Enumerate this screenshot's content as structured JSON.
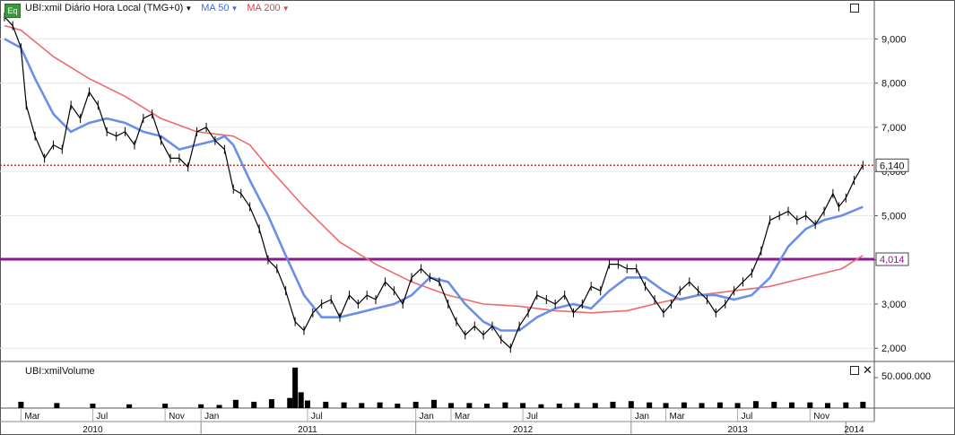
{
  "header": {
    "icon_label": "Eq",
    "symbol_text": "UBI:xmil Diário Hora Local (TMG+0)",
    "ma50_label": "MA 50",
    "ma200_label": "MA 200"
  },
  "volume_panel": {
    "title": "UBI:xmilVolume",
    "axis_label": "50.000.000"
  },
  "colors": {
    "price": "#000000",
    "ma50": "#6b8fe8",
    "ma200": "#ee6b6b",
    "support": "#8b1a8b",
    "last_price": "#c0392b",
    "volume": "#000000"
  },
  "chart_data": {
    "type": "line",
    "title": "UBI:xmil Diário Hora Local (TMG+0)",
    "ylim": [
      1.7,
      9.8
    ],
    "y_ticks": [
      "9,000",
      "8,000",
      "7,000",
      "6,000",
      "5,000",
      "4,000",
      "3,000",
      "2,000"
    ],
    "y_tick_values": [
      9,
      8,
      7,
      6,
      5,
      4,
      3,
      2
    ],
    "x_range": [
      "2010-02-01",
      "2014-01-31"
    ],
    "month_labels": [
      {
        "date": "2010-03-01",
        "label": "Mar"
      },
      {
        "date": "2010-07-01",
        "label": "Jul"
      },
      {
        "date": "2010-11-01",
        "label": "Nov"
      },
      {
        "date": "2011-01-01",
        "label": "Jan"
      },
      {
        "date": "2011-07-01",
        "label": "Jul"
      },
      {
        "date": "2012-01-01",
        "label": "Jan"
      },
      {
        "date": "2012-03-01",
        "label": "Mar"
      },
      {
        "date": "2012-07-01",
        "label": "Jul"
      },
      {
        "date": "2013-01-01",
        "label": "Jan"
      },
      {
        "date": "2013-03-01",
        "label": "Mar"
      },
      {
        "date": "2013-07-01",
        "label": "Jul"
      },
      {
        "date": "2013-11-01",
        "label": "Nov"
      }
    ],
    "year_labels": [
      {
        "date": "2010-07-01",
        "label": "2010"
      },
      {
        "date": "2011-07-01",
        "label": "2011"
      },
      {
        "date": "2012-07-01",
        "label": "2012"
      },
      {
        "date": "2013-07-01",
        "label": "2013"
      },
      {
        "date": "2014-01-15",
        "label": "2014"
      }
    ],
    "year_boundaries": [
      "2011-01-01",
      "2012-01-01",
      "2013-01-01",
      "2014-01-01"
    ],
    "last_price": {
      "value": 6.14,
      "label": "6,140"
    },
    "support_line": {
      "value": 4.014,
      "label": "4,014"
    },
    "series": [
      {
        "name": "UBI:xmil",
        "style": "candles",
        "points": [
          [
            "2010-02-01",
            9.5
          ],
          [
            "2010-02-15",
            9.3
          ],
          [
            "2010-03-01",
            8.8
          ],
          [
            "2010-03-10",
            7.5
          ],
          [
            "2010-03-25",
            6.8
          ],
          [
            "2010-04-10",
            6.3
          ],
          [
            "2010-04-25",
            6.6
          ],
          [
            "2010-05-10",
            6.5
          ],
          [
            "2010-05-25",
            7.5
          ],
          [
            "2010-06-10",
            7.2
          ],
          [
            "2010-06-25",
            7.8
          ],
          [
            "2010-07-10",
            7.5
          ],
          [
            "2010-07-25",
            6.9
          ],
          [
            "2010-08-10",
            6.8
          ],
          [
            "2010-08-25",
            6.9
          ],
          [
            "2010-09-10",
            6.6
          ],
          [
            "2010-09-25",
            7.2
          ],
          [
            "2010-10-10",
            7.3
          ],
          [
            "2010-10-25",
            6.7
          ],
          [
            "2010-11-10",
            6.3
          ],
          [
            "2010-11-25",
            6.3
          ],
          [
            "2010-12-10",
            6.1
          ],
          [
            "2010-12-25",
            6.9
          ],
          [
            "2011-01-10",
            7.0
          ],
          [
            "2011-01-25",
            6.7
          ],
          [
            "2011-02-10",
            6.5
          ],
          [
            "2011-02-25",
            5.6
          ],
          [
            "2011-03-10",
            5.5
          ],
          [
            "2011-03-25",
            5.2
          ],
          [
            "2011-04-10",
            4.7
          ],
          [
            "2011-04-25",
            4.0
          ],
          [
            "2011-05-10",
            3.8
          ],
          [
            "2011-05-25",
            3.3
          ],
          [
            "2011-06-10",
            2.6
          ],
          [
            "2011-06-25",
            2.4
          ],
          [
            "2011-07-10",
            2.8
          ],
          [
            "2011-07-25",
            3.0
          ],
          [
            "2011-08-10",
            3.1
          ],
          [
            "2011-08-25",
            2.7
          ],
          [
            "2011-09-10",
            3.2
          ],
          [
            "2011-09-25",
            3.0
          ],
          [
            "2011-10-10",
            3.2
          ],
          [
            "2011-10-25",
            3.1
          ],
          [
            "2011-11-10",
            3.5
          ],
          [
            "2011-11-25",
            3.3
          ],
          [
            "2011-12-10",
            3.0
          ],
          [
            "2011-12-25",
            3.6
          ],
          [
            "2012-01-10",
            3.8
          ],
          [
            "2012-01-25",
            3.6
          ],
          [
            "2012-02-10",
            3.5
          ],
          [
            "2012-02-25",
            3.0
          ],
          [
            "2012-03-10",
            2.6
          ],
          [
            "2012-03-25",
            2.3
          ],
          [
            "2012-04-10",
            2.5
          ],
          [
            "2012-04-25",
            2.3
          ],
          [
            "2012-05-10",
            2.5
          ],
          [
            "2012-05-25",
            2.2
          ],
          [
            "2012-06-10",
            2.0
          ],
          [
            "2012-06-25",
            2.5
          ],
          [
            "2012-07-10",
            2.8
          ],
          [
            "2012-07-25",
            3.2
          ],
          [
            "2012-08-10",
            3.1
          ],
          [
            "2012-08-25",
            3.0
          ],
          [
            "2012-09-10",
            3.2
          ],
          [
            "2012-09-25",
            2.8
          ],
          [
            "2012-10-10",
            3.0
          ],
          [
            "2012-10-25",
            3.4
          ],
          [
            "2012-11-10",
            3.3
          ],
          [
            "2012-11-25",
            3.9
          ],
          [
            "2012-12-10",
            3.9
          ],
          [
            "2012-12-25",
            3.8
          ],
          [
            "2013-01-10",
            3.8
          ],
          [
            "2013-01-25",
            3.4
          ],
          [
            "2013-02-10",
            3.1
          ],
          [
            "2013-02-25",
            2.8
          ],
          [
            "2013-03-10",
            3.0
          ],
          [
            "2013-03-25",
            3.3
          ],
          [
            "2013-04-10",
            3.5
          ],
          [
            "2013-04-25",
            3.3
          ],
          [
            "2013-05-10",
            3.1
          ],
          [
            "2013-05-25",
            2.8
          ],
          [
            "2013-06-10",
            3.0
          ],
          [
            "2013-06-25",
            3.3
          ],
          [
            "2013-07-10",
            3.5
          ],
          [
            "2013-07-25",
            3.7
          ],
          [
            "2013-08-10",
            4.2
          ],
          [
            "2013-08-25",
            4.9
          ],
          [
            "2013-09-10",
            5.0
          ],
          [
            "2013-09-25",
            5.1
          ],
          [
            "2013-10-10",
            4.9
          ],
          [
            "2013-10-25",
            5.0
          ],
          [
            "2013-11-10",
            4.8
          ],
          [
            "2013-11-25",
            5.1
          ],
          [
            "2013-12-10",
            5.5
          ],
          [
            "2013-12-20",
            5.2
          ],
          [
            "2014-01-01",
            5.4
          ],
          [
            "2014-01-15",
            5.8
          ],
          [
            "2014-01-30",
            6.14
          ]
        ]
      },
      {
        "name": "MA 50",
        "style": "line",
        "points": [
          [
            "2010-02-01",
            9.0
          ],
          [
            "2010-03-01",
            8.8
          ],
          [
            "2010-03-25",
            8.1
          ],
          [
            "2010-04-25",
            7.3
          ],
          [
            "2010-05-25",
            6.9
          ],
          [
            "2010-06-25",
            7.1
          ],
          [
            "2010-07-25",
            7.2
          ],
          [
            "2010-08-25",
            7.1
          ],
          [
            "2010-09-25",
            6.9
          ],
          [
            "2010-10-25",
            6.8
          ],
          [
            "2010-11-25",
            6.5
          ],
          [
            "2010-12-25",
            6.6
          ],
          [
            "2011-01-25",
            6.7
          ],
          [
            "2011-02-10",
            6.8
          ],
          [
            "2011-02-25",
            6.6
          ],
          [
            "2011-03-25",
            5.8
          ],
          [
            "2011-04-25",
            5.0
          ],
          [
            "2011-05-25",
            4.1
          ],
          [
            "2011-06-25",
            3.2
          ],
          [
            "2011-07-25",
            2.7
          ],
          [
            "2011-08-25",
            2.7
          ],
          [
            "2011-09-25",
            2.8
          ],
          [
            "2011-10-25",
            2.9
          ],
          [
            "2011-11-25",
            3.0
          ],
          [
            "2011-12-25",
            3.2
          ],
          [
            "2012-01-25",
            3.6
          ],
          [
            "2012-02-25",
            3.5
          ],
          [
            "2012-03-25",
            3.0
          ],
          [
            "2012-04-25",
            2.6
          ],
          [
            "2012-05-25",
            2.4
          ],
          [
            "2012-06-25",
            2.4
          ],
          [
            "2012-07-25",
            2.7
          ],
          [
            "2012-08-25",
            2.9
          ],
          [
            "2012-09-25",
            3.0
          ],
          [
            "2012-10-25",
            2.9
          ],
          [
            "2012-11-25",
            3.3
          ],
          [
            "2012-12-25",
            3.6
          ],
          [
            "2013-01-25",
            3.6
          ],
          [
            "2013-02-25",
            3.3
          ],
          [
            "2013-03-25",
            3.1
          ],
          [
            "2013-04-25",
            3.2
          ],
          [
            "2013-05-25",
            3.2
          ],
          [
            "2013-06-25",
            3.1
          ],
          [
            "2013-07-25",
            3.2
          ],
          [
            "2013-08-25",
            3.6
          ],
          [
            "2013-09-25",
            4.3
          ],
          [
            "2013-10-25",
            4.7
          ],
          [
            "2013-11-25",
            4.9
          ],
          [
            "2013-12-25",
            5.0
          ],
          [
            "2014-01-30",
            5.2
          ]
        ]
      },
      {
        "name": "MA 200",
        "style": "line",
        "points": [
          [
            "2010-02-01",
            9.3
          ],
          [
            "2010-03-01",
            9.2
          ],
          [
            "2010-04-25",
            8.6
          ],
          [
            "2010-06-25",
            8.1
          ],
          [
            "2010-08-25",
            7.7
          ],
          [
            "2010-10-25",
            7.2
          ],
          [
            "2010-12-25",
            6.9
          ],
          [
            "2011-02-25",
            6.8
          ],
          [
            "2011-03-25",
            6.6
          ],
          [
            "2011-04-25",
            6.1
          ],
          [
            "2011-06-25",
            5.2
          ],
          [
            "2011-08-25",
            4.4
          ],
          [
            "2011-10-25",
            3.9
          ],
          [
            "2011-12-25",
            3.5
          ],
          [
            "2012-02-25",
            3.2
          ],
          [
            "2012-04-25",
            3.0
          ],
          [
            "2012-06-25",
            2.95
          ],
          [
            "2012-08-25",
            2.85
          ],
          [
            "2012-10-25",
            2.8
          ],
          [
            "2012-12-25",
            2.85
          ],
          [
            "2013-02-25",
            3.05
          ],
          [
            "2013-04-25",
            3.2
          ],
          [
            "2013-06-25",
            3.3
          ],
          [
            "2013-08-25",
            3.4
          ],
          [
            "2013-10-25",
            3.6
          ],
          [
            "2013-12-25",
            3.8
          ],
          [
            "2014-01-30",
            4.1
          ]
        ]
      }
    ],
    "volume_series": {
      "name": "UBI:xmilVolume",
      "points": [
        [
          "2010-03-01",
          1.0
        ],
        [
          "2010-05-01",
          0.8
        ],
        [
          "2010-07-01",
          0.7
        ],
        [
          "2010-09-01",
          0.6
        ],
        [
          "2010-11-01",
          0.7
        ],
        [
          "2011-01-01",
          0.6
        ],
        [
          "2011-02-01",
          0.5
        ],
        [
          "2011-03-01",
          1.3
        ],
        [
          "2011-04-01",
          1.0
        ],
        [
          "2011-05-01",
          1.4
        ],
        [
          "2011-06-01",
          1.6
        ],
        [
          "2011-06-10",
          6.4
        ],
        [
          "2011-06-20",
          2.5
        ],
        [
          "2011-07-01",
          1.2
        ],
        [
          "2011-08-01",
          1.0
        ],
        [
          "2011-09-01",
          0.9
        ],
        [
          "2011-10-01",
          0.8
        ],
        [
          "2011-11-01",
          0.9
        ],
        [
          "2011-12-01",
          0.7
        ],
        [
          "2012-01-01",
          1.0
        ],
        [
          "2012-02-01",
          1.3
        ],
        [
          "2012-03-01",
          0.8
        ],
        [
          "2012-04-01",
          0.8
        ],
        [
          "2012-05-01",
          0.7
        ],
        [
          "2012-06-01",
          0.9
        ],
        [
          "2012-07-01",
          0.8
        ],
        [
          "2012-08-01",
          0.6
        ],
        [
          "2012-09-01",
          0.7
        ],
        [
          "2012-10-01",
          0.8
        ],
        [
          "2012-11-01",
          0.8
        ],
        [
          "2012-12-01",
          1.0
        ],
        [
          "2013-01-01",
          1.1
        ],
        [
          "2013-02-01",
          0.9
        ],
        [
          "2013-03-01",
          0.8
        ],
        [
          "2013-04-01",
          0.9
        ],
        [
          "2013-05-01",
          0.8
        ],
        [
          "2013-06-01",
          0.9
        ],
        [
          "2013-07-01",
          0.8
        ],
        [
          "2013-08-01",
          1.1
        ],
        [
          "2013-09-01",
          1.0
        ],
        [
          "2013-10-01",
          0.9
        ],
        [
          "2013-11-01",
          0.9
        ],
        [
          "2013-12-01",
          0.8
        ],
        [
          "2014-01-01",
          0.9
        ],
        [
          "2014-01-30",
          1.0
        ]
      ]
    }
  }
}
